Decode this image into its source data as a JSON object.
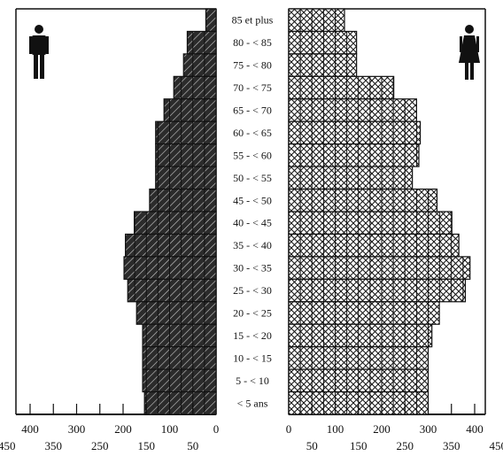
{
  "chart_data": {
    "type": "bar",
    "orientation": "horizontal",
    "categories": [
      "85 et plus",
      "80 - < 85",
      "75 - < 80",
      "70 - < 75",
      "65 - < 70",
      "60 - < 65",
      "55 - < 60",
      "50 - < 55",
      "45 - < 50",
      "40 - < 45",
      "35 - < 40",
      "30 - < 35",
      "25 - < 30",
      "20 - < 25",
      "15 - < 20",
      "10 - < 15",
      "5 - < 10",
      "< 5 ans"
    ],
    "series": [
      {
        "side": "left",
        "symbol": "male-icon",
        "pattern": "hatched-grid",
        "values": [
          22,
          62,
          70,
          91,
          112,
          130,
          130,
          130,
          143,
          176,
          195,
          198,
          190,
          171,
          158,
          158,
          158,
          154
        ]
      },
      {
        "side": "right",
        "symbol": "female-icon",
        "pattern": "crosshatched-grid",
        "values": [
          120,
          146,
          146,
          226,
          275,
          283,
          280,
          266,
          319,
          351,
          366,
          390,
          380,
          324,
          308,
          300,
          300,
          300
        ]
      }
    ],
    "left_axis": {
      "ticks": [
        400,
        350,
        300,
        250,
        200,
        150,
        100,
        50
      ],
      "range": [
        0,
        450
      ],
      "tick_label_row": [
        450,
        350,
        250,
        150,
        50
      ],
      "tick_label_row_shifted": [
        400,
        300,
        200,
        100,
        0
      ]
    },
    "right_axis": {
      "ticks": [
        50,
        100,
        150,
        200,
        250,
        300,
        350,
        400
      ],
      "range": [
        0,
        450
      ],
      "tick_label_row": [
        0,
        100,
        200,
        300,
        400
      ],
      "tick_label_row_shifted": [
        50,
        150,
        250,
        350,
        450
      ]
    },
    "tick_labels_left_upper": [
      "400",
      "300",
      "200",
      "100",
      "0"
    ],
    "tick_labels_left_lower": [
      "450",
      "350",
      "250",
      "150",
      "50"
    ],
    "tick_labels_right_upper": [
      "0",
      "100",
      "200",
      "300",
      "400"
    ],
    "tick_labels_right_lower": [
      "50",
      "150",
      "250",
      "350",
      "450"
    ],
    "grid": true,
    "title": "",
    "xlabel": "",
    "ylabel": ""
  }
}
